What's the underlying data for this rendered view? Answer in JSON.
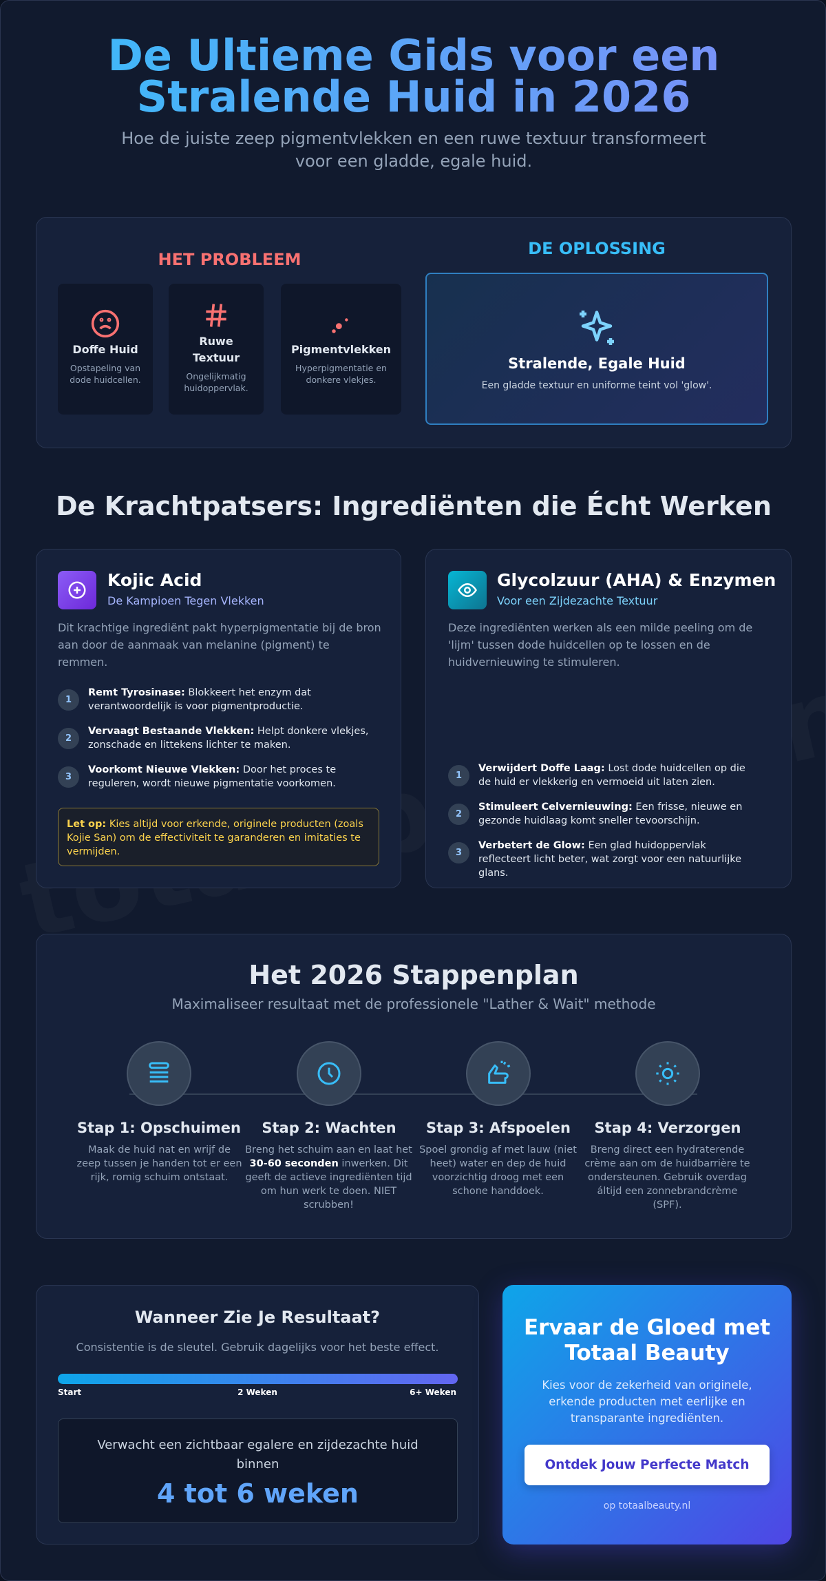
{
  "header": {
    "title_line1": "De Ultieme Gids voor een",
    "title_line2": "Stralende Huid in 2026",
    "subtitle": "Hoe de juiste zeep pigmentvlekken en een ruwe textuur transformeert voor een gladde, egale huid."
  },
  "problem": {
    "heading": "HET PROBLEEM",
    "items": [
      {
        "title": "Doffe Huid",
        "text": "Opstapeling van dode huidcellen."
      },
      {
        "title": "Ruwe Textuur",
        "text": "Ongelijkmatig huidoppervlak."
      },
      {
        "title": "Pigmentvlekken",
        "text": "Hyperpigmentatie en donkere vlekjes."
      }
    ]
  },
  "solution": {
    "heading": "DE OPLOSSING",
    "title": "Stralende, Egale Huid",
    "text": "Een gladde textuur en uniforme teint vol 'glow'."
  },
  "ingredients": {
    "heading": "De Krachtpatsers: Ingrediënten die Écht Werken",
    "cards": [
      {
        "title": "Kojic Acid",
        "subtitle": "De Kampioen Tegen Vlekken",
        "intro": "Dit krachtige ingrediënt pakt hyperpigmentatie bij de bron aan door de aanmaak van melanine (pigment) te remmen.",
        "points": [
          {
            "number": 1,
            "lead": "Remt Tyrosinase:",
            "text": "Blokkeert het enzym dat verantwoordelijk is voor pigmentproductie."
          },
          {
            "number": 2,
            "lead": "Vervaagt Bestaande Vlekken:",
            "text": "Helpt donkere vlekjes, zonschade en littekens lichter te maken."
          },
          {
            "number": 3,
            "lead": "Voorkomt Nieuwe Vlekken:",
            "text": "Door het proces te reguleren, wordt nieuwe pigmentatie voorkomen."
          }
        ],
        "note": {
          "lead": "Let op:",
          "text": "Kies altijd voor erkende, originele producten (zoals Kojie San) om de effectiviteit te garanderen en imitaties te vermijden."
        }
      },
      {
        "title": "Glycolzuur (AHA) & Enzymen",
        "subtitle": "Voor een Zijdezachte Textuur",
        "intro": "Deze ingrediënten werken als een milde peeling om de 'lijm' tussen dode huidcellen op te lossen en de huidvernieuwing te stimuleren.",
        "points": [
          {
            "number": 1,
            "lead": "Verwijdert Doffe Laag:",
            "text": "Lost dode huidcellen op die de huid er vlekkerig en vermoeid uit laten zien."
          },
          {
            "number": 2,
            "lead": "Stimuleert Celvernieuwing:",
            "text": "Een frisse, nieuwe en gezonde huidlaag komt sneller tevoorschijn."
          },
          {
            "number": 3,
            "lead": "Verbetert de Glow:",
            "text": "Een glad huidoppervlak reflecteert licht beter, wat zorgt voor een natuurlijke glans."
          }
        ]
      }
    ]
  },
  "plan": {
    "title": "Het 2026 Stappenplan",
    "subtitle": "Maximaliseer resultaat met de professionele \"Lather & Wait\" methode",
    "steps": [
      {
        "title": "Stap 1: Opschuimen",
        "text": "Maak de huid nat en wrijf de zeep tussen je handen tot er een rijk, romig schuim ontstaat."
      },
      {
        "title": "Stap 2: Wachten",
        "text_before": "Breng het schuim aan en laat het",
        "text_bold": "30-60 seconden",
        "text_after": "inwerken. Dit geeft de actieve ingrediënten tijd om hun werk te doen. NIET scrubben!"
      },
      {
        "title": "Stap 3: Afspoelen",
        "text": "Spoel grondig af met lauw (niet heet) water en dep de huid voorzichtig droog met een schone handdoek."
      },
      {
        "title": "Stap 4: Verzorgen",
        "text": "Breng direct een hydraterende crème aan om de huidbarrière te ondersteunen. Gebruik overdag áltijd een zonnebrandcrème (SPF)."
      }
    ]
  },
  "results": {
    "title": "Wanneer Zie Je Resultaat?",
    "subtitle": "Consistentie is de sleutel. Gebruik dagelijks voor het beste effect.",
    "timeline_labels": [
      "Start",
      "2 Weken",
      "6+ Weken"
    ],
    "expect": "Verwacht een zichtbaar egalere en zijdezachte huid binnen",
    "duration": "4 tot 6 weken"
  },
  "cta": {
    "title": "Ervaar de Gloed met Totaal Beauty",
    "text": "Kies voor de zekerheid van originele, erkende producten met eerlijke en transparante ingrediënten.",
    "button": "Ontdek Jouw Perfecte Match",
    "site": "op totaalbeauty.nl"
  },
  "watermark": "totaalbeauty.nl"
}
